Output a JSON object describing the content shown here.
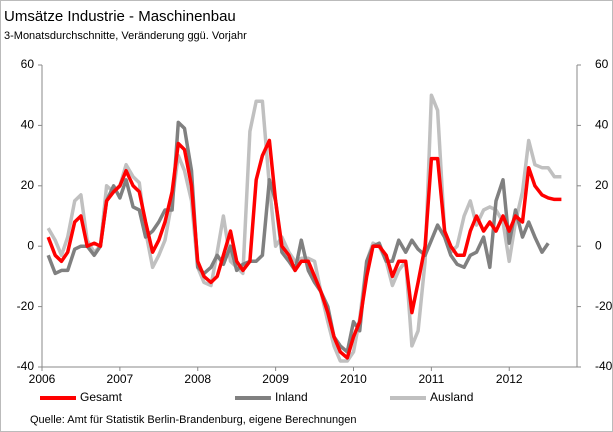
{
  "chart_data": {
    "type": "line",
    "title": "Umsätze Industrie - Maschinenbau",
    "subtitle": "3-Monatsdurchschnitte, Veränderung ggü. Vorjahr",
    "source": "Quelle: Amt für Statistik Berlin-Brandenburg, eigene Berechnungen",
    "x": [
      2006.08,
      2006.17,
      2006.25,
      2006.33,
      2006.42,
      2006.5,
      2006.58,
      2006.67,
      2006.75,
      2006.83,
      2006.92,
      2007,
      2007.08,
      2007.17,
      2007.25,
      2007.33,
      2007.42,
      2007.5,
      2007.58,
      2007.67,
      2007.75,
      2007.83,
      2007.92,
      2008,
      2008.08,
      2008.17,
      2008.25,
      2008.33,
      2008.42,
      2008.5,
      2008.58,
      2008.67,
      2008.75,
      2008.83,
      2008.92,
      2009,
      2009.08,
      2009.17,
      2009.25,
      2009.33,
      2009.42,
      2009.5,
      2009.58,
      2009.67,
      2009.75,
      2009.83,
      2009.92,
      2010,
      2010.08,
      2010.17,
      2010.25,
      2010.33,
      2010.42,
      2010.5,
      2010.58,
      2010.67,
      2010.75,
      2010.83,
      2010.92,
      2011,
      2011.08,
      2011.17,
      2011.25,
      2011.33,
      2011.42,
      2011.5,
      2011.58,
      2011.67,
      2011.75,
      2011.83,
      2011.92,
      2012,
      2012.08,
      2012.17,
      2012.25,
      2012.33,
      2012.42,
      2012.5,
      2012.58,
      2012.67
    ],
    "series": [
      {
        "name": "Gesamt",
        "color": "#ff0000",
        "values": [
          3,
          -3,
          -5,
          -2,
          8,
          10,
          0,
          1,
          0,
          15,
          18,
          20,
          25,
          20,
          18,
          8,
          -2,
          2,
          8,
          18,
          34,
          32,
          20,
          -5,
          -10,
          -12,
          -10,
          -3,
          5,
          -5,
          -8,
          -5,
          22,
          30,
          35,
          15,
          0,
          -3,
          -8,
          -5,
          -5,
          -10,
          -15,
          -22,
          -30,
          -35,
          -37,
          -30,
          -25,
          -10,
          0,
          0,
          -3,
          -10,
          -5,
          -5,
          -22,
          -12,
          0,
          29,
          29,
          5,
          0,
          -3,
          -3,
          5,
          10,
          5,
          8,
          5,
          10,
          5,
          10,
          8,
          26,
          20,
          17,
          16,
          15.5,
          15.5
        ]
      },
      {
        "name": "Inland",
        "color": "#808080",
        "values": [
          -3,
          -9,
          -8,
          -8,
          -1,
          0,
          0,
          -3,
          0,
          15,
          20,
          16,
          22,
          13,
          12,
          3,
          5,
          8,
          12,
          12,
          41,
          39,
          25,
          -7,
          -9,
          -7,
          -3,
          -6,
          0,
          -8,
          -6,
          -5,
          -5,
          -3,
          22,
          15,
          -2,
          -5,
          -8,
          2,
          -8,
          -12,
          -15,
          -20,
          -30,
          -33,
          -35,
          -25,
          -28,
          -5,
          0,
          1,
          -5,
          -5,
          2,
          -2,
          2,
          -1,
          -3,
          2,
          7,
          3,
          -3,
          -6,
          -7,
          -3,
          -2,
          3,
          -7,
          15,
          22,
          1,
          12,
          3,
          8,
          3,
          -2,
          1,
          null,
          null
        ]
      },
      {
        "name": "Ausland",
        "color": "#c0c0c0",
        "values": [
          6,
          2,
          -3,
          3,
          15,
          17,
          2,
          -2,
          0,
          20,
          18,
          20,
          27,
          23,
          21,
          5,
          -7,
          -3,
          2,
          15,
          30,
          25,
          15,
          -7,
          -12,
          -13,
          -2,
          10,
          -5,
          -7,
          -9,
          38,
          48,
          48,
          20,
          0,
          3,
          -2,
          -5,
          -4,
          -4,
          -5,
          -15,
          -25,
          -33,
          -38,
          -38,
          -35,
          -24,
          -5,
          1,
          0,
          -5,
          -13,
          -8,
          -5,
          -33,
          -28,
          -5,
          50,
          45,
          5,
          -2,
          0,
          10,
          15,
          7,
          12,
          13,
          12,
          8,
          -5,
          8,
          18,
          35,
          27,
          26,
          26,
          23,
          23
        ]
      }
    ],
    "xlim": [
      2006,
      2012.87
    ],
    "xticks": [
      2006,
      2007,
      2008,
      2009,
      2010,
      2011,
      2012
    ],
    "ylim": [
      -40,
      60
    ],
    "yticks": [
      -40,
      -20,
      0,
      20,
      40,
      60
    ],
    "y2lim": [
      -40,
      60
    ],
    "y2ticks": [
      -40,
      -20,
      0,
      20,
      40,
      60
    ],
    "legend": "bottom"
  }
}
